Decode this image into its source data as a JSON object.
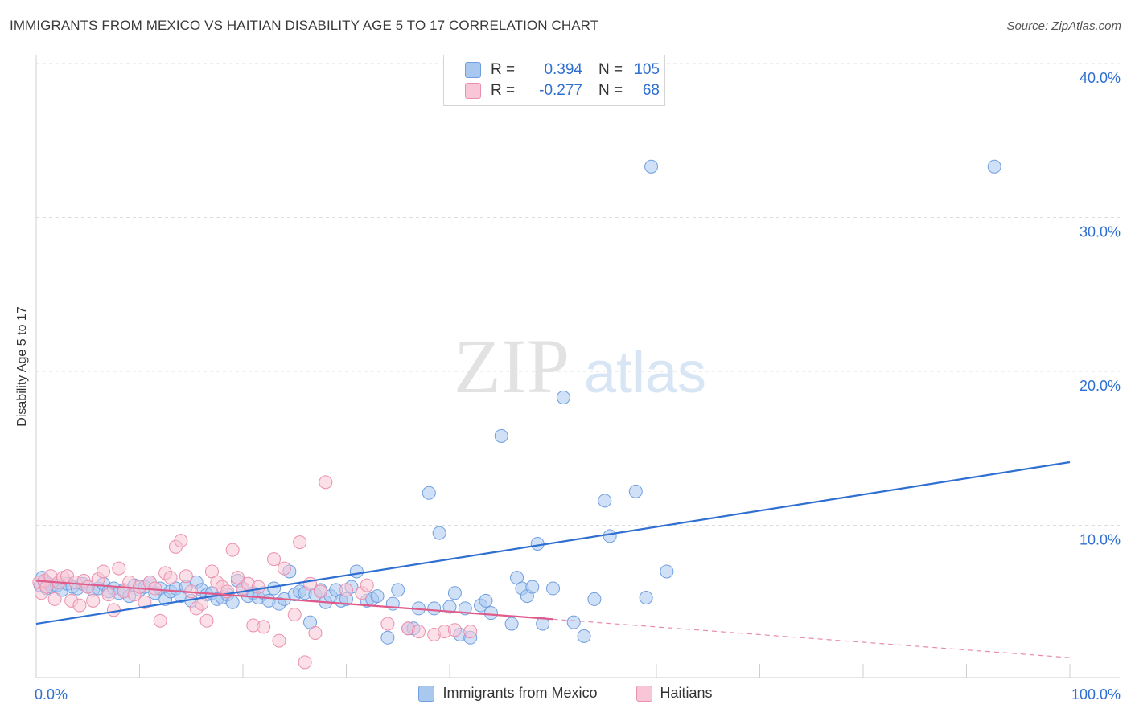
{
  "title": "IMMIGRANTS FROM MEXICO VS HAITIAN DISABILITY AGE 5 TO 17 CORRELATION CHART",
  "source": "Source: ZipAtlas.com",
  "watermark": {
    "zip": "ZIP",
    "atlas": "atlas"
  },
  "legend": {
    "rows": [
      {
        "r_label": "R =",
        "r_value": "0.394",
        "n_label": "N =",
        "n_value": "105",
        "color": "#a9c8f0",
        "border": "#6f9fe0"
      },
      {
        "r_label": "R =",
        "r_value": "-0.277",
        "n_label": "N =",
        "n_value": "68",
        "color": "#f8c6d6",
        "border": "#eb8fae"
      }
    ]
  },
  "chart_data": {
    "type": "scatter",
    "xlabel": "",
    "ylabel": "Disability Age 5 to 17",
    "xlim": [
      0,
      100
    ],
    "ylim": [
      0,
      40
    ],
    "x_tick_labels": [
      {
        "value": 0,
        "label": "0.0%"
      },
      {
        "value": 100,
        "label": "100.0%"
      }
    ],
    "y_tick_labels": [
      {
        "value": 10,
        "label": "10.0%"
      },
      {
        "value": 20,
        "label": "20.0%"
      },
      {
        "value": 30,
        "label": "30.0%"
      },
      {
        "value": 40,
        "label": "40.0%"
      }
    ],
    "grid": "horizontal dashed",
    "series": [
      {
        "name": "Immigrants from Mexico",
        "color": "#a9c8f0",
        "edge": "#6f9fe0",
        "trend": {
          "x": [
            0,
            100
          ],
          "y": [
            3.6,
            14.1
          ],
          "color": "#2f6fd1"
        },
        "points": [
          [
            0.4,
            6.1
          ],
          [
            0.6,
            6.6
          ],
          [
            0.8,
            6.3
          ],
          [
            1.0,
            5.9
          ],
          [
            1.2,
            6.2
          ],
          [
            1.5,
            6.0
          ],
          [
            2.0,
            6.1
          ],
          [
            2.5,
            5.8
          ],
          [
            3.0,
            6.2
          ],
          [
            3.5,
            6.0
          ],
          [
            4.0,
            5.9
          ],
          [
            4.5,
            6.2
          ],
          [
            5.0,
            6.0
          ],
          [
            5.5,
            5.8
          ],
          [
            6.0,
            5.9
          ],
          [
            6.5,
            6.2
          ],
          [
            7.0,
            5.7
          ],
          [
            7.5,
            5.9
          ],
          [
            8.0,
            5.6
          ],
          [
            8.5,
            5.8
          ],
          [
            9.0,
            5.4
          ],
          [
            9.5,
            6.1
          ],
          [
            10.0,
            5.8
          ],
          [
            10.5,
            6.0
          ],
          [
            11.0,
            6.3
          ],
          [
            11.5,
            5.6
          ],
          [
            12.0,
            5.9
          ],
          [
            12.5,
            5.2
          ],
          [
            13.0,
            5.7
          ],
          [
            13.5,
            5.9
          ],
          [
            14.0,
            5.4
          ],
          [
            14.5,
            6.0
          ],
          [
            15.0,
            5.1
          ],
          [
            15.5,
            6.3
          ],
          [
            16.0,
            5.8
          ],
          [
            16.5,
            5.5
          ],
          [
            17.0,
            5.6
          ],
          [
            17.5,
            5.2
          ],
          [
            18.0,
            5.3
          ],
          [
            18.5,
            5.5
          ],
          [
            19.0,
            5.0
          ],
          [
            19.5,
            6.4
          ],
          [
            20.0,
            5.8
          ],
          [
            20.5,
            5.4
          ],
          [
            21.0,
            5.6
          ],
          [
            21.5,
            5.3
          ],
          [
            22.0,
            5.6
          ],
          [
            22.5,
            5.1
          ],
          [
            23.0,
            5.9
          ],
          [
            23.5,
            4.9
          ],
          [
            24.0,
            5.2
          ],
          [
            24.5,
            7.0
          ],
          [
            25.0,
            5.5
          ],
          [
            25.5,
            5.7
          ],
          [
            26.0,
            5.6
          ],
          [
            26.5,
            3.7
          ],
          [
            27.0,
            5.5
          ],
          [
            27.5,
            5.8
          ],
          [
            28.0,
            5.0
          ],
          [
            28.5,
            5.4
          ],
          [
            29.0,
            5.8
          ],
          [
            29.5,
            5.1
          ],
          [
            30.0,
            5.2
          ],
          [
            30.5,
            6.0
          ],
          [
            31.0,
            7.0
          ],
          [
            32.0,
            5.1
          ],
          [
            32.5,
            5.2
          ],
          [
            33.0,
            5.4
          ],
          [
            34.0,
            2.7
          ],
          [
            34.5,
            4.9
          ],
          [
            35.0,
            5.8
          ],
          [
            36.0,
            3.3
          ],
          [
            36.5,
            3.3
          ],
          [
            37.0,
            4.6
          ],
          [
            38.0,
            12.1
          ],
          [
            38.5,
            4.6
          ],
          [
            39.0,
            9.5
          ],
          [
            40.0,
            4.7
          ],
          [
            40.5,
            5.6
          ],
          [
            41.0,
            2.9
          ],
          [
            41.5,
            4.6
          ],
          [
            42.0,
            2.7
          ],
          [
            43.0,
            4.8
          ],
          [
            43.5,
            5.1
          ],
          [
            44.0,
            4.3
          ],
          [
            45.0,
            15.8
          ],
          [
            46.0,
            3.6
          ],
          [
            46.5,
            6.6
          ],
          [
            47.0,
            5.9
          ],
          [
            47.5,
            5.4
          ],
          [
            48.0,
            6.0
          ],
          [
            48.5,
            8.8
          ],
          [
            49.0,
            3.6
          ],
          [
            50.0,
            5.9
          ],
          [
            51.0,
            18.3
          ],
          [
            52.0,
            3.7
          ],
          [
            53.0,
            2.8
          ],
          [
            54.0,
            5.2
          ],
          [
            55.0,
            11.6
          ],
          [
            55.5,
            9.3
          ],
          [
            58.0,
            12.2
          ],
          [
            59.0,
            5.3
          ],
          [
            59.5,
            33.3
          ],
          [
            61.0,
            7.0
          ],
          [
            92.7,
            33.3
          ]
        ]
      },
      {
        "name": "Haitians",
        "color": "#f8c6d6",
        "edge": "#eb8fae",
        "trend": {
          "x": [
            0,
            50
          ],
          "y": [
            6.4,
            3.9
          ],
          "color": "#e05a8a",
          "dashed_extension": {
            "x": [
              50,
              100
            ],
            "y": [
              3.9,
              1.4
            ]
          }
        },
        "points": [
          [
            0.3,
            6.3
          ],
          [
            0.5,
            5.6
          ],
          [
            0.8,
            6.4
          ],
          [
            1.0,
            6.0
          ],
          [
            1.4,
            6.7
          ],
          [
            1.8,
            5.2
          ],
          [
            2.2,
            6.3
          ],
          [
            2.6,
            6.6
          ],
          [
            3.0,
            6.7
          ],
          [
            3.4,
            5.1
          ],
          [
            3.8,
            6.3
          ],
          [
            4.2,
            4.8
          ],
          [
            4.6,
            6.4
          ],
          [
            5.0,
            6.0
          ],
          [
            5.5,
            5.1
          ],
          [
            6.0,
            6.5
          ],
          [
            6.5,
            7.0
          ],
          [
            7.0,
            5.5
          ],
          [
            7.5,
            4.5
          ],
          [
            8.0,
            7.2
          ],
          [
            8.5,
            5.7
          ],
          [
            9.0,
            6.3
          ],
          [
            9.5,
            5.5
          ],
          [
            10.0,
            6.0
          ],
          [
            10.5,
            5.0
          ],
          [
            11.0,
            6.3
          ],
          [
            11.5,
            5.9
          ],
          [
            12.0,
            3.8
          ],
          [
            12.5,
            6.9
          ],
          [
            13.0,
            6.6
          ],
          [
            13.5,
            8.6
          ],
          [
            14.0,
            9.0
          ],
          [
            14.5,
            6.7
          ],
          [
            15.0,
            5.7
          ],
          [
            15.5,
            4.6
          ],
          [
            16.0,
            4.9
          ],
          [
            16.5,
            3.8
          ],
          [
            17.0,
            7.0
          ],
          [
            17.5,
            6.3
          ],
          [
            18.0,
            6.0
          ],
          [
            18.5,
            5.7
          ],
          [
            19.0,
            8.4
          ],
          [
            19.5,
            6.6
          ],
          [
            20.0,
            5.9
          ],
          [
            20.5,
            6.2
          ],
          [
            21.0,
            3.5
          ],
          [
            21.5,
            6.0
          ],
          [
            22.0,
            3.4
          ],
          [
            23.0,
            7.8
          ],
          [
            23.5,
            2.5
          ],
          [
            24.0,
            7.2
          ],
          [
            25.0,
            4.2
          ],
          [
            25.5,
            8.9
          ],
          [
            26.0,
            1.1
          ],
          [
            26.5,
            6.2
          ],
          [
            27.0,
            3.0
          ],
          [
            27.5,
            5.7
          ],
          [
            28.0,
            12.8
          ],
          [
            30.0,
            5.8
          ],
          [
            31.5,
            5.6
          ],
          [
            32.0,
            6.1
          ],
          [
            34.0,
            3.6
          ],
          [
            36.0,
            3.3
          ],
          [
            37.0,
            3.1
          ],
          [
            38.5,
            2.9
          ],
          [
            39.5,
            3.1
          ],
          [
            40.5,
            3.2
          ],
          [
            42.0,
            3.1
          ]
        ]
      }
    ]
  }
}
